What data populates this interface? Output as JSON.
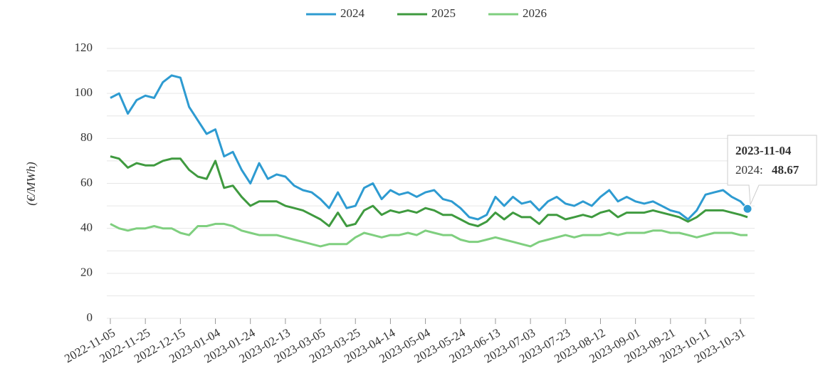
{
  "chart_data": {
    "type": "line",
    "y_label": "(€/MWh)",
    "x": [
      "2022-11-05",
      "2022-11-10",
      "2022-11-15",
      "2022-11-20",
      "2022-11-25",
      "2022-11-30",
      "2022-12-05",
      "2022-12-10",
      "2022-12-15",
      "2022-12-20",
      "2022-12-25",
      "2022-12-30",
      "2023-01-04",
      "2023-01-09",
      "2023-01-14",
      "2023-01-19",
      "2023-01-24",
      "2023-01-29",
      "2023-02-03",
      "2023-02-08",
      "2023-02-13",
      "2023-02-18",
      "2023-02-23",
      "2023-02-28",
      "2023-03-05",
      "2023-03-10",
      "2023-03-15",
      "2023-03-20",
      "2023-03-25",
      "2023-03-30",
      "2023-04-04",
      "2023-04-09",
      "2023-04-14",
      "2023-04-19",
      "2023-04-24",
      "2023-04-29",
      "2023-05-04",
      "2023-05-09",
      "2023-05-14",
      "2023-05-19",
      "2023-05-24",
      "2023-05-29",
      "2023-06-03",
      "2023-06-08",
      "2023-06-13",
      "2023-06-18",
      "2023-06-23",
      "2023-06-28",
      "2023-07-03",
      "2023-07-08",
      "2023-07-13",
      "2023-07-18",
      "2023-07-23",
      "2023-07-28",
      "2023-08-02",
      "2023-08-07",
      "2023-08-12",
      "2023-08-17",
      "2023-08-22",
      "2023-08-27",
      "2023-09-01",
      "2023-09-06",
      "2023-09-11",
      "2023-09-16",
      "2023-09-21",
      "2023-09-26",
      "2023-10-01",
      "2023-10-06",
      "2023-10-11",
      "2023-10-16",
      "2023-10-21",
      "2023-10-26",
      "2023-10-31",
      "2023-11-04"
    ],
    "series": [
      {
        "name": "2024",
        "color": "#2e9bd1",
        "values": [
          98,
          100,
          91,
          97,
          99,
          98,
          105,
          108,
          107,
          94,
          88,
          82,
          84,
          72,
          74,
          66,
          60,
          69,
          62,
          64,
          63,
          59,
          57,
          56,
          53,
          49,
          56,
          49,
          50,
          58,
          60,
          53,
          57,
          55,
          56,
          54,
          56,
          57,
          53,
          52,
          49,
          45,
          44,
          46,
          54,
          50,
          54,
          51,
          52,
          48,
          52,
          54,
          51,
          50,
          52,
          50,
          54,
          57,
          52,
          54,
          52,
          51,
          52,
          50,
          48,
          47,
          44,
          48,
          55,
          56,
          57,
          54,
          52,
          48.67
        ]
      },
      {
        "name": "2025",
        "color": "#3f9a3f",
        "values": [
          72,
          71,
          67,
          69,
          68,
          68,
          70,
          71,
          71,
          66,
          63,
          62,
          70,
          58,
          59,
          54,
          50,
          52,
          52,
          52,
          50,
          49,
          48,
          46,
          44,
          41,
          47,
          41,
          42,
          48,
          50,
          46,
          48,
          47,
          48,
          47,
          49,
          48,
          46,
          46,
          44,
          42,
          41,
          43,
          47,
          44,
          47,
          45,
          45,
          42,
          46,
          46,
          44,
          45,
          46,
          45,
          47,
          48,
          45,
          47,
          47,
          47,
          48,
          47,
          46,
          45,
          43,
          45,
          48,
          48,
          48,
          47,
          46,
          45
        ]
      },
      {
        "name": "2026",
        "color": "#7fcf7f",
        "values": [
          42,
          40,
          39,
          40,
          40,
          41,
          40,
          40,
          38,
          37,
          41,
          41,
          42,
          42,
          41,
          39,
          38,
          37,
          37,
          37,
          36,
          35,
          34,
          33,
          32,
          33,
          33,
          33,
          36,
          38,
          37,
          36,
          37,
          37,
          38,
          37,
          39,
          38,
          37,
          37,
          35,
          34,
          34,
          35,
          36,
          35,
          34,
          33,
          32,
          34,
          35,
          36,
          37,
          36,
          37,
          37,
          37,
          38,
          37,
          38,
          38,
          38,
          39,
          39,
          38,
          38,
          37,
          36,
          37,
          38,
          38,
          38,
          37,
          37
        ]
      }
    ],
    "xlim": [
      "2022-11-05",
      "2023-11-04"
    ],
    "xticks": [
      "2022-11-05",
      "2022-11-25",
      "2022-12-15",
      "2023-01-04",
      "2023-01-24",
      "2023-02-13",
      "2023-03-05",
      "2023-03-25",
      "2023-04-14",
      "2023-05-04",
      "2023-05-24",
      "2023-06-13",
      "2023-07-03",
      "2023-07-23",
      "2023-08-12",
      "2023-09-01",
      "2023-09-21",
      "2023-10-11",
      "2023-10-31"
    ],
    "ylim": [
      0,
      120
    ],
    "yticks": [
      0,
      20,
      40,
      60,
      80,
      100,
      120
    ],
    "yminorticks": [
      10,
      30,
      50,
      70,
      90,
      110
    ],
    "grid": true,
    "legend": "top",
    "tooltip": {
      "date": "2023-11-04",
      "label": "2024:",
      "value": 48.67
    }
  }
}
